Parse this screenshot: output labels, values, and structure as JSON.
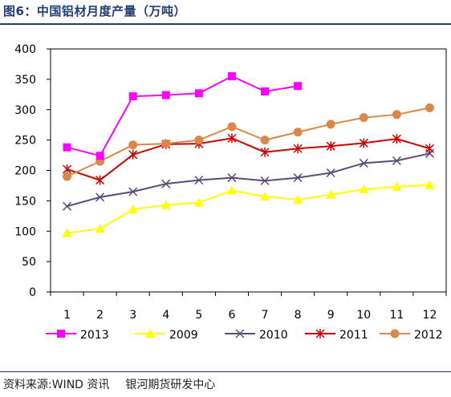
{
  "title": "图6：中国铝材月度产量（万吨）",
  "source": {
    "left": "资料来源:WIND 资讯",
    "right": "银河期货研发中心"
  },
  "chart_data": {
    "type": "line",
    "categories": [
      "1",
      "2",
      "3",
      "4",
      "5",
      "6",
      "7",
      "8",
      "9",
      "10",
      "11",
      "12"
    ],
    "ylim": [
      0,
      400
    ],
    "yticks": [
      "0",
      "50",
      "100",
      "150",
      "200",
      "250",
      "300",
      "350",
      "400"
    ],
    "xlabel": "",
    "ylabel": "",
    "grid": false,
    "legend_position": "bottom",
    "series": [
      {
        "name": "2013",
        "color": "#ff00ff",
        "marker": "square",
        "values": [
          238,
          224,
          322,
          324,
          327,
          355,
          330,
          339,
          null,
          null,
          null,
          null
        ]
      },
      {
        "name": "2009",
        "color": "#ffff00",
        "marker": "triangle",
        "values": [
          97,
          104,
          136,
          143,
          147,
          167,
          157,
          152,
          160,
          169,
          173,
          176
        ]
      },
      {
        "name": "2010",
        "color": "#5b4a7a",
        "marker": "x",
        "values": [
          141,
          156,
          165,
          178,
          184,
          188,
          183,
          188,
          196,
          212,
          216,
          228
        ]
      },
      {
        "name": "2011",
        "color": "#cc0000",
        "marker": "star",
        "values": [
          202,
          184,
          226,
          243,
          244,
          253,
          230,
          236,
          240,
          245,
          252,
          236
        ]
      },
      {
        "name": "2012",
        "color": "#d9884a",
        "marker": "circle",
        "values": [
          190,
          215,
          242,
          244,
          250,
          272,
          250,
          263,
          276,
          287,
          292,
          303
        ]
      }
    ]
  }
}
